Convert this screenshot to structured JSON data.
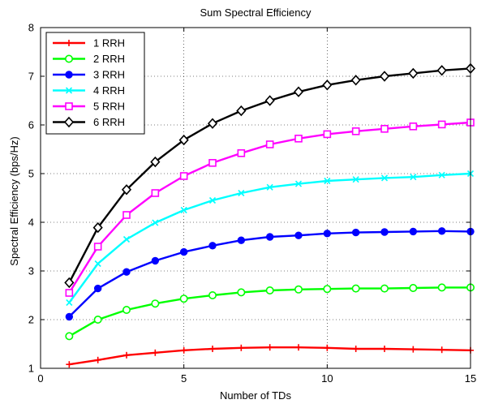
{
  "chart_data": {
    "type": "line",
    "title": "Sum Spectral Efficiency",
    "xlabel": "Number of TDs",
    "ylabel": "Spectral Efficiency (bps/Hz)",
    "xlim": [
      0,
      15
    ],
    "ylim": [
      1,
      8
    ],
    "xticks": [
      0,
      5,
      10,
      15
    ],
    "yticks": [
      1,
      2,
      3,
      4,
      5,
      6,
      7,
      8
    ],
    "grid": true,
    "legend_position": "top-left",
    "x": [
      1,
      2,
      3,
      4,
      5,
      6,
      7,
      8,
      9,
      10,
      11,
      12,
      13,
      14,
      15
    ],
    "series": [
      {
        "name": "1 RRH",
        "color": "#ff0000",
        "marker": "plus",
        "values": [
          1.08,
          1.17,
          1.27,
          1.32,
          1.37,
          1.4,
          1.42,
          1.43,
          1.43,
          1.42,
          1.4,
          1.4,
          1.39,
          1.38,
          1.37
        ]
      },
      {
        "name": "2 RRH",
        "color": "#00ff00",
        "marker": "circle-open",
        "values": [
          1.66,
          2.0,
          2.2,
          2.33,
          2.43,
          2.5,
          2.56,
          2.6,
          2.62,
          2.63,
          2.64,
          2.64,
          2.65,
          2.66,
          2.66
        ]
      },
      {
        "name": "3 RRH",
        "color": "#0000ff",
        "marker": "circle-filled",
        "values": [
          2.06,
          2.64,
          2.98,
          3.21,
          3.39,
          3.52,
          3.63,
          3.7,
          3.73,
          3.77,
          3.79,
          3.8,
          3.81,
          3.82,
          3.81
        ]
      },
      {
        "name": "4 RRH",
        "color": "#00ffff",
        "marker": "x",
        "values": [
          2.35,
          3.15,
          3.65,
          3.99,
          4.25,
          4.45,
          4.6,
          4.72,
          4.79,
          4.85,
          4.88,
          4.91,
          4.93,
          4.97,
          5.0
        ]
      },
      {
        "name": "5 RRH",
        "color": "#ff00ff",
        "marker": "square-open",
        "values": [
          2.55,
          3.5,
          4.15,
          4.6,
          4.95,
          5.22,
          5.42,
          5.6,
          5.72,
          5.81,
          5.87,
          5.92,
          5.97,
          6.01,
          6.05
        ]
      },
      {
        "name": "6 RRH",
        "color": "#000000",
        "marker": "diamond-open",
        "values": [
          2.76,
          3.89,
          4.67,
          5.24,
          5.69,
          6.03,
          6.29,
          6.5,
          6.68,
          6.82,
          6.92,
          7.0,
          7.06,
          7.12,
          7.16
        ]
      }
    ]
  }
}
